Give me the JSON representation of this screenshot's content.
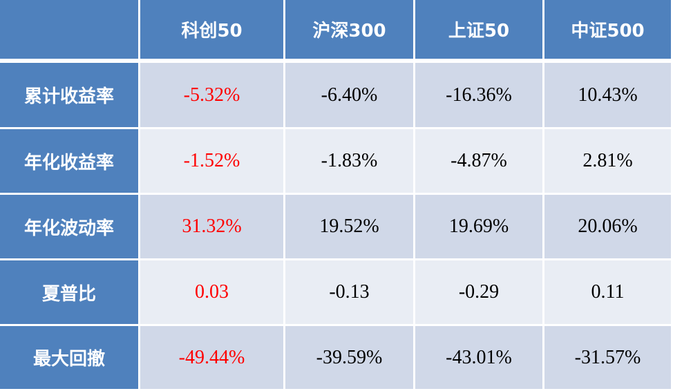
{
  "header": {
    "columns": [
      "科创50",
      "沪深300",
      "上证50",
      "中证500"
    ]
  },
  "table": {
    "rows": [
      {
        "label": "累计收益率",
        "values": [
          "-5.32%",
          "-6.40%",
          "-16.36%",
          "10.43%"
        ]
      },
      {
        "label": "年化收益率",
        "values": [
          "-1.52%",
          "-1.83%",
          "-4.87%",
          "2.81%"
        ]
      },
      {
        "label": "年化波动率",
        "values": [
          "31.32%",
          "19.52%",
          "19.69%",
          "20.06%"
        ]
      },
      {
        "label": "夏普比",
        "values": [
          "0.03",
          "-0.13",
          "-0.29",
          "0.11"
        ]
      },
      {
        "label": "最大回撤",
        "values": [
          "-49.44%",
          "-39.59%",
          "-43.01%",
          "-31.57%"
        ]
      }
    ]
  }
}
